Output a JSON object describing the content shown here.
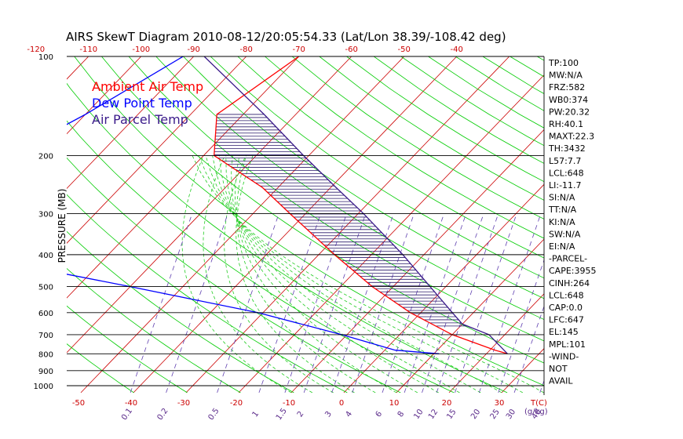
{
  "chart_data": {
    "type": "line",
    "title": "AIRS SkewT Diagram 2010-08-12/20:05:54.33 (Lat/Lon 38.39/-108.42 deg)",
    "ylabel": "PRESSURE (MB)",
    "xlabel_bottom": "T(C)",
    "mixing_unit": "(g/kg)",
    "pressure_ticks": [
      100,
      200,
      300,
      400,
      500,
      600,
      700,
      800,
      900,
      1000
    ],
    "top_temp_ticks": [
      -120,
      -110,
      -100,
      -90,
      -80,
      -70,
      -60,
      -50,
      -40
    ],
    "bottom_temp_ticks": [
      -50,
      -40,
      -30,
      -20,
      -10,
      0,
      10,
      20,
      30
    ],
    "mixing_ratio_ticks": [
      "0.1",
      "0.2",
      "0.5",
      "1",
      "1.5",
      "2",
      "3",
      "4",
      "6",
      "8",
      "10",
      "12",
      "15",
      "20",
      "25",
      "30",
      "40"
    ],
    "legend": [
      {
        "label": "Ambient Air Temp",
        "color": "#ff0000"
      },
      {
        "label": "Dew Point Temp",
        "color": "#0000ff"
      },
      {
        "label": "Air Parcel Temp",
        "color": "#3a1a8a"
      }
    ],
    "series": [
      {
        "name": "Ambient Air Temp",
        "color": "#ff0000",
        "points": [
          [
            100,
            -70
          ],
          [
            150,
            -75
          ],
          [
            200,
            -68
          ],
          [
            250,
            -53
          ],
          [
            300,
            -43
          ],
          [
            400,
            -27
          ],
          [
            500,
            -14
          ],
          [
            600,
            -2
          ],
          [
            700,
            10
          ],
          [
            780,
            21
          ],
          [
            800,
            24
          ]
        ]
      },
      {
        "name": "Dew Point Temp",
        "color": "#0000ff",
        "points": [
          [
            100,
            -92
          ],
          [
            150,
            -100
          ],
          [
            200,
            -107
          ],
          [
            250,
            -113
          ],
          [
            300,
            -111
          ],
          [
            400,
            -97
          ],
          [
            500,
            -60
          ],
          [
            600,
            -31
          ],
          [
            700,
            -11
          ],
          [
            780,
            2
          ],
          [
            800,
            11
          ]
        ]
      },
      {
        "name": "Air Parcel Temp",
        "color": "#3a1a8a",
        "points": [
          [
            100,
            -88
          ],
          [
            150,
            -66
          ],
          [
            200,
            -51
          ],
          [
            250,
            -39
          ],
          [
            300,
            -29
          ],
          [
            400,
            -14
          ],
          [
            500,
            -3
          ],
          [
            600,
            6
          ],
          [
            650,
            10
          ],
          [
            700,
            17
          ],
          [
            800,
            24
          ]
        ]
      }
    ]
  },
  "indices": [
    "TP:100",
    "MW:N/A",
    "FRZ:582",
    "WB0:374",
    "PW:20.32",
    "RH:40.1",
    "MAXT:22.3",
    "TH:3432",
    "L57:7.7",
    "LCL:648",
    "LI:-11.7",
    "SI:N/A",
    "TT:N/A",
    "KI:N/A",
    "SW:N/A",
    "EI:N/A",
    "-PARCEL-",
    "CAPE:3955",
    "CINH:264",
    "LCL:648",
    "CAP:0.0",
    "LFC:647",
    "EL:145",
    "MPL:101",
    "-WIND-",
    "NOT",
    "AVAIL"
  ],
  "colors": {
    "isotherm": "#cc0000",
    "dry_adiabat": "#00cc00",
    "moist_adiabat": "#22cc22",
    "mixing_ratio": "#6040b0",
    "hatch": "#2a1a6a"
  }
}
